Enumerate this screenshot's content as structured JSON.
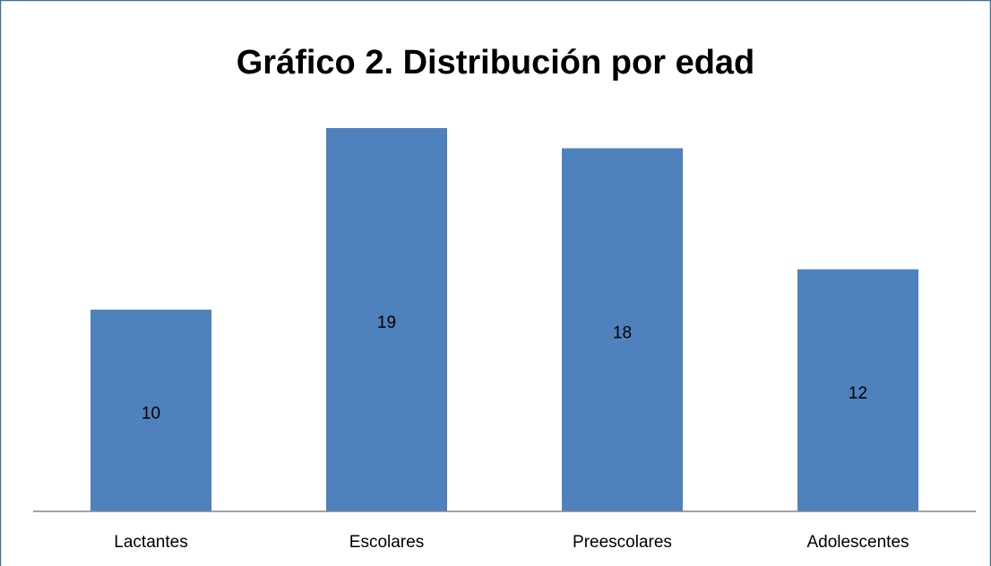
{
  "chart_data": {
    "type": "bar",
    "title": "Gráfico 2. Distribución por edad",
    "categories": [
      "Lactantes",
      "Escolares",
      "Preescolares",
      "Adolescentes"
    ],
    "values": [
      10,
      19,
      18,
      12
    ],
    "color": "#4f81bd"
  }
}
